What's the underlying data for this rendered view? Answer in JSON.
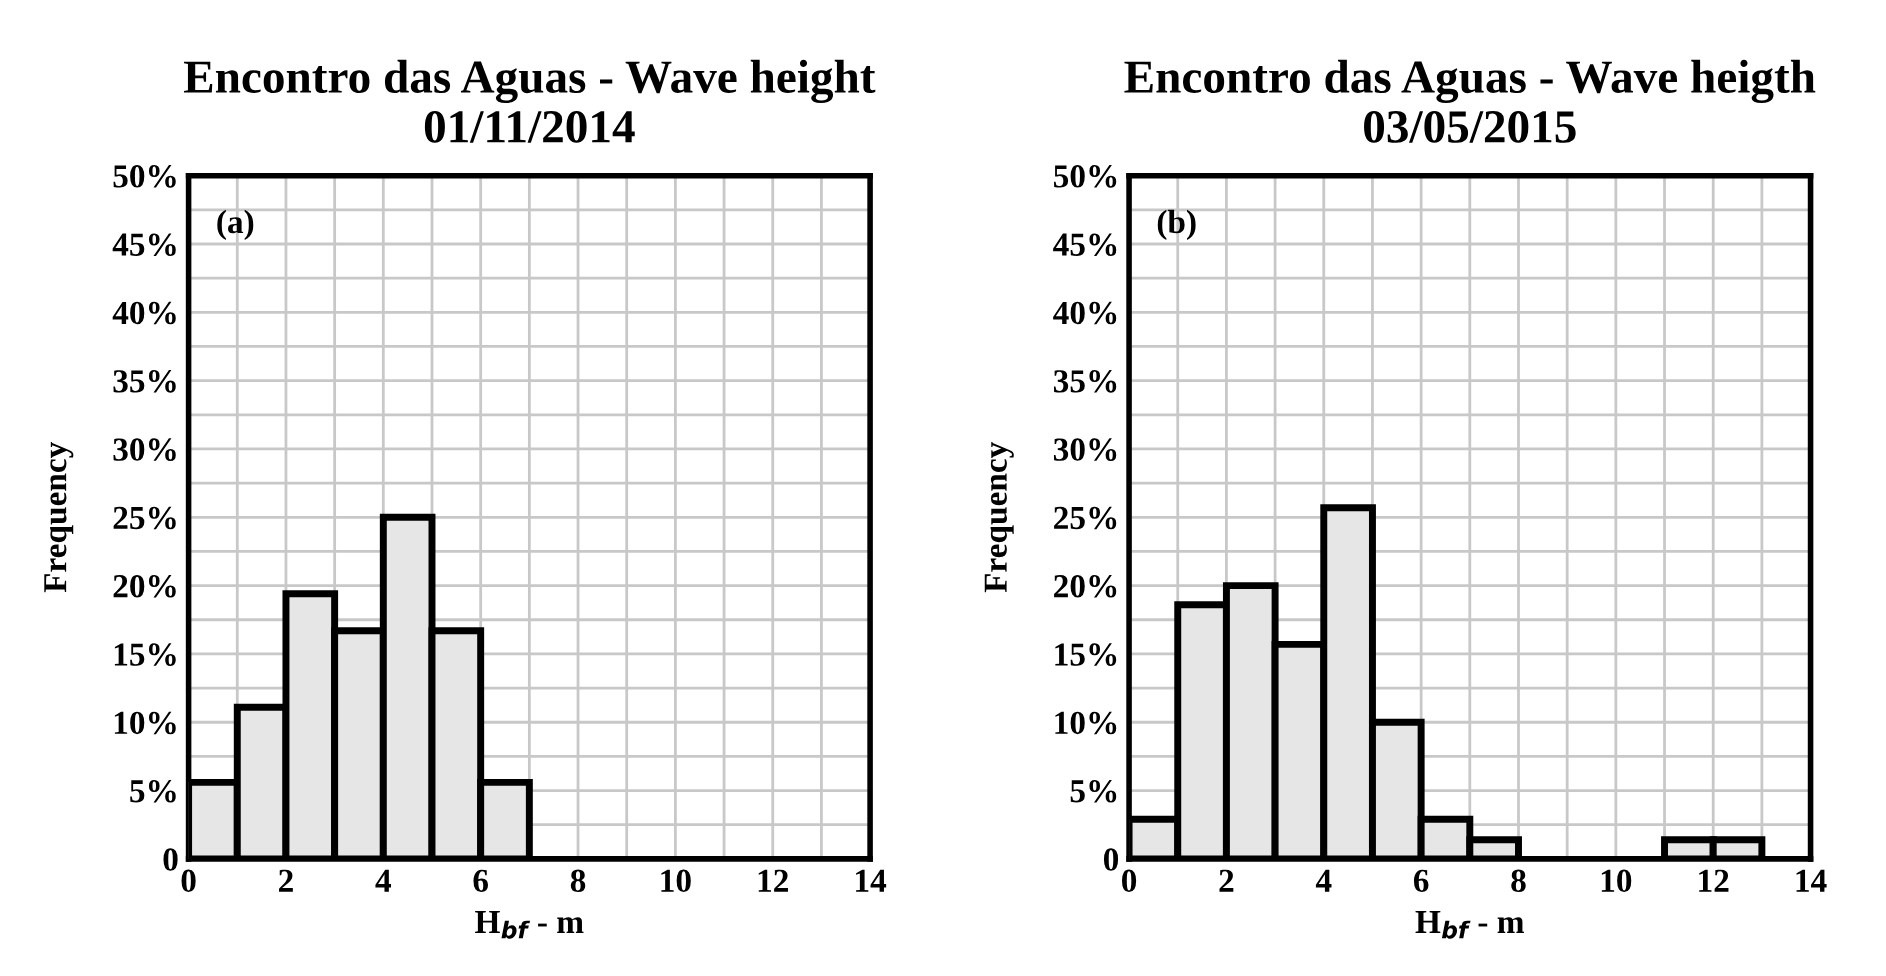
{
  "chart_data": [
    {
      "type": "histogram",
      "title": "Encontro das Aguas - Wave height\n01/11/2014",
      "xlabel": "H$_{bf}$ - m",
      "ylabel": "Frequency",
      "annotations": [
        "(a)"
      ],
      "bins": [
        0,
        1,
        2,
        3,
        4,
        5,
        6,
        7,
        8,
        9,
        10,
        11,
        12,
        13,
        14
      ],
      "values": [
        5.6,
        11.1,
        19.4,
        16.7,
        25,
        16.7,
        5.6,
        0,
        0,
        0,
        0,
        0,
        0,
        0
      ],
      "color": "#e6e6e6",
      "xlim": [
        0,
        14
      ],
      "xticks": [
        0,
        {
          "value": 1,
          "label": null
        },
        2,
        {
          "value": 3,
          "label": null
        },
        4,
        {
          "value": 5,
          "label": null
        },
        6,
        {
          "value": 7,
          "label": null
        },
        8,
        {
          "value": 9,
          "label": null
        },
        10,
        {
          "value": 11,
          "label": null
        },
        12,
        {
          "value": 13,
          "label": null
        },
        14
      ],
      "ylim": [
        0,
        50
      ],
      "yticks": [
        0,
        {
          "value": 2.5,
          "label": null
        },
        {
          "value": 5,
          "label": "5%"
        },
        {
          "value": 7.5,
          "label": null
        },
        {
          "value": 10,
          "label": "10%"
        },
        {
          "value": 12.5,
          "label": null
        },
        {
          "value": 15,
          "label": "15%"
        },
        {
          "value": 17.5,
          "label": null
        },
        {
          "value": 20,
          "label": "20%"
        },
        {
          "value": 22.5,
          "label": null
        },
        {
          "value": 25,
          "label": "25%"
        },
        {
          "value": 27.5,
          "label": null
        },
        {
          "value": 30,
          "label": "30%"
        },
        {
          "value": 32.5,
          "label": null
        },
        {
          "value": 35,
          "label": "35%"
        },
        {
          "value": 37.5,
          "label": null
        },
        {
          "value": 40,
          "label": "40%"
        },
        {
          "value": 42.5,
          "label": null
        },
        {
          "value": 45,
          "label": "45%"
        },
        {
          "value": 47.5,
          "label": null
        },
        {
          "value": 50,
          "label": "50%"
        }
      ],
      "grid": true
    },
    {
      "type": "histogram",
      "title": "Encontro das Aguas - Wave heigth\n03/05/2015",
      "xlabel": "H$_{bf}$ - m",
      "ylabel": "Frequency",
      "annotations": [
        "(b)"
      ],
      "bins": [
        0,
        1,
        2,
        3,
        4,
        5,
        6,
        7,
        8,
        9,
        10,
        11,
        12,
        13,
        14
      ],
      "values": [
        2.9,
        18.6,
        20,
        15.7,
        25.7,
        10,
        2.9,
        1.4,
        0,
        0,
        0,
        1.4,
        1.4,
        0
      ],
      "color": "#e6e6e6",
      "xlim": [
        0,
        14
      ],
      "xticks": [
        0,
        {
          "value": 1,
          "label": null
        },
        2,
        {
          "value": 3,
          "label": null
        },
        4,
        {
          "value": 5,
          "label": null
        },
        6,
        {
          "value": 7,
          "label": null
        },
        8,
        {
          "value": 9,
          "label": null
        },
        10,
        {
          "value": 11,
          "label": null
        },
        12,
        {
          "value": 13,
          "label": null
        },
        14
      ],
      "ylim": [
        0,
        50
      ],
      "yticks": [
        0,
        {
          "value": 2.5,
          "label": null
        },
        {
          "value": 5,
          "label": "5%"
        },
        {
          "value": 7.5,
          "label": null
        },
        {
          "value": 10,
          "label": "10%"
        },
        {
          "value": 12.5,
          "label": null
        },
        {
          "value": 15,
          "label": "15%"
        },
        {
          "value": 17.5,
          "label": null
        },
        {
          "value": 20,
          "label": "20%"
        },
        {
          "value": 22.5,
          "label": null
        },
        {
          "value": 25,
          "label": "25%"
        },
        {
          "value": 27.5,
          "label": null
        },
        {
          "value": 30,
          "label": "30%"
        },
        {
          "value": 32.5,
          "label": null
        },
        {
          "value": 35,
          "label": "35%"
        },
        {
          "value": 37.5,
          "label": null
        },
        {
          "value": 40,
          "label": "40%"
        },
        {
          "value": 42.5,
          "label": null
        },
        {
          "value": 45,
          "label": "45%"
        },
        {
          "value": 47.5,
          "label": null
        },
        {
          "value": 50,
          "label": "50%"
        }
      ],
      "grid": true
    }
  ]
}
